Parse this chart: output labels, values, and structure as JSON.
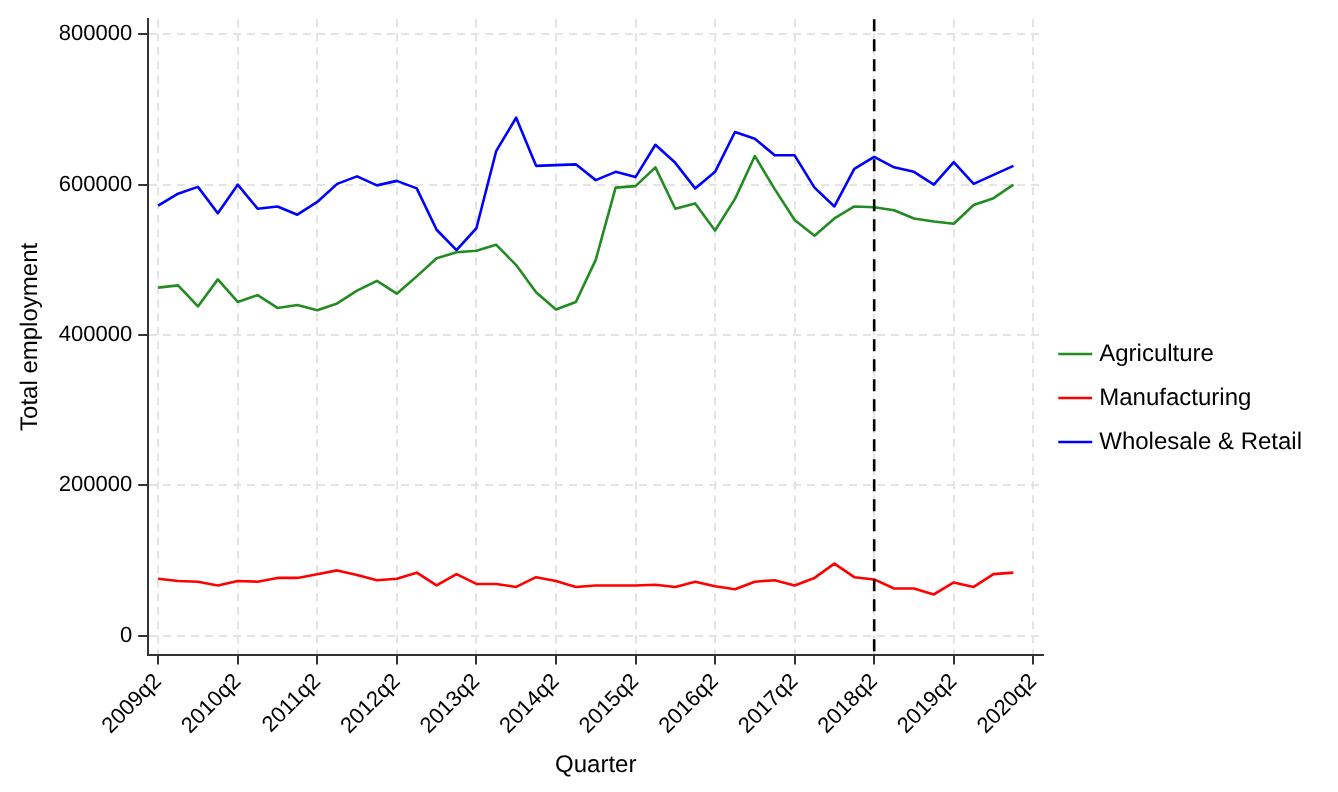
{
  "chart_data": {
    "type": "line",
    "xlabel": "Quarter",
    "ylabel": "Total employment",
    "categories": [
      "2009q2",
      null,
      null,
      null,
      "2010q2",
      null,
      null,
      null,
      "2011q2",
      null,
      null,
      null,
      "2012q2",
      null,
      null,
      null,
      "2013q2",
      null,
      null,
      null,
      "2014q2",
      null,
      null,
      null,
      "2015q2",
      null,
      null,
      null,
      "2016q2",
      null,
      null,
      null,
      "2017q2",
      null,
      null,
      null,
      "2018q2",
      null,
      null,
      null,
      "2019q2",
      null,
      null,
      null,
      "2020q2"
    ],
    "series": [
      {
        "name": "Agriculture",
        "color": "#228b22",
        "values": [
          463000,
          466000,
          438000,
          474000,
          444000,
          453000,
          436000,
          440000,
          433000,
          442000,
          459000,
          472000,
          455000,
          478000,
          502000,
          510000,
          512000,
          520000,
          493000,
          457000,
          434000,
          444000,
          500000,
          596000,
          598000,
          623000,
          568000,
          575000,
          539000,
          581000,
          638000,
          594000,
          553000,
          532000,
          555000,
          571000,
          570000,
          566000,
          555000,
          551000,
          548000,
          573000,
          582000,
          600000,
          null
        ]
      },
      {
        "name": "Manufacturing",
        "color": "#ff0000",
        "values": [
          76000,
          73000,
          72000,
          67000,
          73000,
          72000,
          77000,
          77000,
          82000,
          87000,
          81000,
          74000,
          76000,
          84000,
          67000,
          82000,
          69000,
          69000,
          65000,
          78000,
          73000,
          65000,
          67000,
          67000,
          67000,
          68000,
          65000,
          72000,
          66000,
          62000,
          72000,
          74000,
          67000,
          77000,
          96000,
          78000,
          75000,
          63000,
          63000,
          55000,
          71000,
          65000,
          82000,
          84000,
          null
        ]
      },
      {
        "name": "Wholesale & Retail",
        "color": "#0000ff",
        "values": [
          572000,
          588000,
          597000,
          562000,
          600000,
          568000,
          571000,
          560000,
          577000,
          601000,
          611000,
          599000,
          605000,
          595000,
          540000,
          513000,
          542000,
          645000,
          689000,
          625000,
          626000,
          627000,
          606000,
          617000,
          610000,
          653000,
          629000,
          595000,
          617000,
          670000,
          661000,
          639000,
          639000,
          596000,
          571000,
          621000,
          637000,
          623000,
          617000,
          600000,
          630000,
          601000,
          613000,
          625000,
          null
        ]
      }
    ],
    "ylim": [
      -25000,
      820000
    ],
    "yticks": [
      0,
      200000,
      400000,
      600000,
      800000
    ],
    "ref_lines": [
      {
        "axis": "x",
        "value": "2018q2",
        "color": "#000000",
        "line_style": "dashed"
      }
    ],
    "grid": true,
    "legend": "right",
    "marker": "none",
    "line_style": "solid"
  }
}
